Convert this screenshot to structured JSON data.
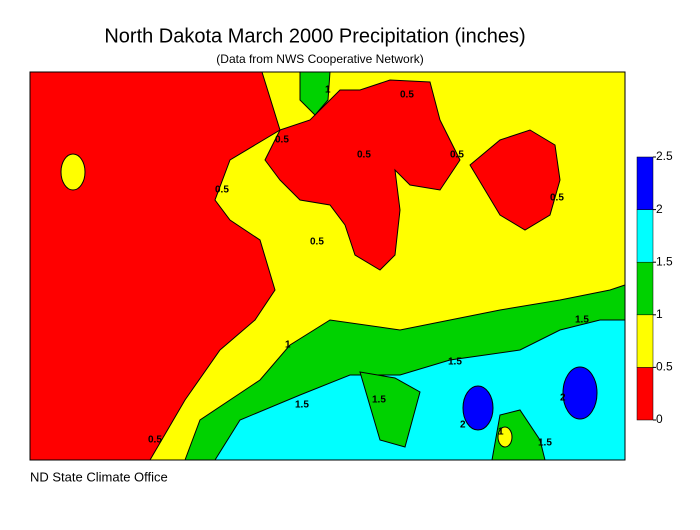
{
  "header": {
    "title": "North Dakota March 2000 Precipitation (inches)",
    "subtitle": "(Data from NWS Cooperative Network)"
  },
  "legend": {
    "ticks": [
      0,
      0.5,
      1,
      1.5,
      2,
      2.5
    ],
    "colors": [
      "#ff0000",
      "#ffff00",
      "#00d200",
      "#00ffff",
      "#0000ff"
    ]
  },
  "contour_labels": [
    0.5,
    0.5,
    0.5,
    0.5,
    0.5,
    0.5,
    0.5,
    0.5,
    1,
    1,
    1.5,
    1.5,
    1.5,
    1.5,
    1.5,
    2,
    2,
    1
  ],
  "footer": "ND State Climate Office"
}
